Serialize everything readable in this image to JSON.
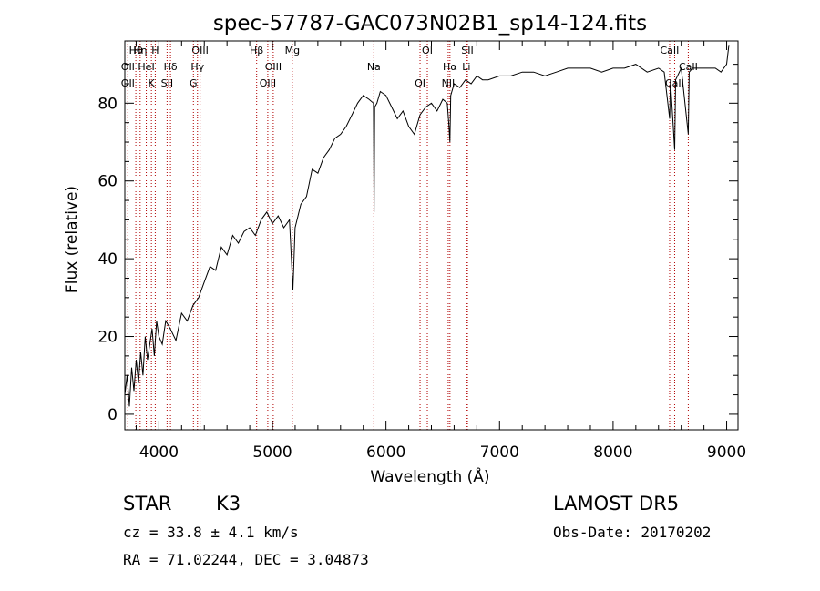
{
  "chart_data": {
    "type": "line",
    "title": "spec-57787-GAC073N02B1_sp14-124.fits",
    "xlabel": "Wavelength (Å)",
    "ylabel": "Flux (relative)",
    "xlim": [
      3700,
      9100
    ],
    "ylim": [
      -4,
      96
    ],
    "xticks": [
      4000,
      5000,
      6000,
      7000,
      8000,
      9000
    ],
    "yticks": [
      0,
      20,
      40,
      60,
      80
    ],
    "grid": false,
    "series": [
      {
        "x": [
          3700,
          3720,
          3740,
          3760,
          3780,
          3800,
          3820,
          3840,
          3860,
          3880,
          3900,
          3920,
          3940,
          3960,
          3980,
          4000,
          4030,
          4060,
          4100,
          4150,
          4200,
          4250,
          4300,
          4350,
          4400,
          4450,
          4500,
          4550,
          4600,
          4650,
          4700,
          4750,
          4800,
          4850,
          4900,
          4950,
          5000,
          5050,
          5100,
          5150,
          5180,
          5200,
          5250,
          5300,
          5350,
          5400,
          5450,
          5500,
          5550,
          5600,
          5650,
          5700,
          5750,
          5800,
          5850,
          5890,
          5895,
          5900,
          5920,
          5950,
          6000,
          6050,
          6100,
          6150,
          6200,
          6250,
          6300,
          6350,
          6400,
          6450,
          6500,
          6540,
          6555,
          6563,
          6570,
          6600,
          6650,
          6700,
          6750,
          6800,
          6850,
          6900,
          7000,
          7100,
          7200,
          7300,
          7400,
          7500,
          7600,
          7700,
          7800,
          7900,
          8000,
          8100,
          8200,
          8300,
          8400,
          8450,
          8498,
          8505,
          8542,
          8550,
          8600,
          8662,
          8670,
          8700,
          8800,
          8900,
          8950,
          9000,
          9020
        ],
        "values": [
          5,
          10,
          2,
          12,
          6,
          14,
          8,
          16,
          10,
          20,
          14,
          18,
          22,
          15,
          24,
          20,
          18,
          24,
          22,
          19,
          26,
          24,
          28,
          30,
          34,
          38,
          37,
          43,
          41,
          46,
          44,
          47,
          48,
          46,
          50,
          52,
          49,
          51,
          48,
          50,
          32,
          48,
          54,
          56,
          63,
          62,
          66,
          68,
          71,
          72,
          74,
          77,
          80,
          82,
          81,
          80,
          52,
          79,
          80,
          83,
          82,
          79,
          76,
          78,
          74,
          72,
          77,
          79,
          80,
          78,
          81,
          80,
          74,
          70,
          82,
          85,
          84,
          86,
          85,
          87,
          86,
          86,
          87,
          87,
          88,
          88,
          87,
          88,
          89,
          89,
          89,
          88,
          89,
          89,
          90,
          88,
          89,
          88,
          76,
          86,
          68,
          86,
          89,
          72,
          88,
          89,
          89,
          89,
          88,
          90,
          95
        ]
      }
    ],
    "line_markers": [
      {
        "label": "Hθ",
        "x": 3797
      },
      {
        "label": "OII",
        "x": 3727
      },
      {
        "label": "OII",
        "x": 3727
      },
      {
        "label": "Hη",
        "x": 3835
      },
      {
        "label": "HeI",
        "x": 3889
      },
      {
        "label": "K",
        "x": 3934
      },
      {
        "label": "H",
        "x": 3968
      },
      {
        "label": "Hδ",
        "x": 4102
      },
      {
        "label": "SII",
        "x": 4072
      },
      {
        "label": "OIII",
        "x": 4363
      },
      {
        "label": "Hγ",
        "x": 4340
      },
      {
        "label": "G",
        "x": 4304
      },
      {
        "label": "Hβ",
        "x": 4861
      },
      {
        "label": "OIII",
        "x": 5007
      },
      {
        "label": "OIII",
        "x": 4959
      },
      {
        "label": "Mg",
        "x": 5175
      },
      {
        "label": "Na",
        "x": 5893
      },
      {
        "label": "OI",
        "x": 6300
      },
      {
        "label": "OI",
        "x": 6364
      },
      {
        "label": "Hα",
        "x": 6563
      },
      {
        "label": "NII",
        "x": 6548
      },
      {
        "label": "SII",
        "x": 6717
      },
      {
        "label": "Li",
        "x": 6708
      },
      {
        "label": "CaII",
        "x": 8542
      },
      {
        "label": "CaII",
        "x": 8498
      },
      {
        "label": "CaII",
        "x": 8662
      }
    ]
  },
  "info": {
    "class": "STAR",
    "subclass": "K3",
    "survey": "LAMOST DR5",
    "cz": "cz = 33.8 ± 4.1 km/s",
    "obs_date": "Obs-Date: 20170202",
    "coords": "RA =  71.02244, DEC =   3.04873"
  }
}
